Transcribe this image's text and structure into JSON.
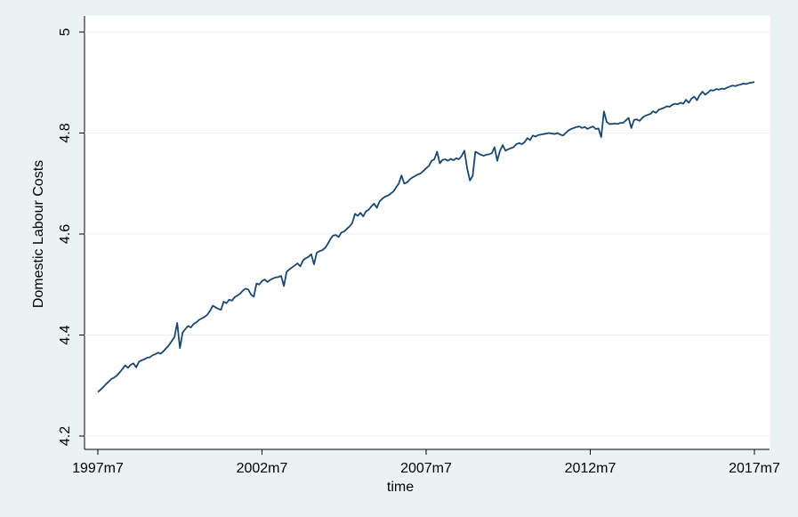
{
  "chart_data": {
    "type": "line",
    "x_label": "time",
    "y_label": "Domestic Labour Costs",
    "x": [
      450,
      451,
      452,
      453,
      454,
      455,
      456,
      457,
      458,
      459,
      460,
      461,
      462,
      463,
      464,
      465,
      466,
      467,
      468,
      469,
      470,
      471,
      472,
      473,
      474,
      475,
      476,
      477,
      478,
      479,
      480,
      481,
      482,
      483,
      484,
      485,
      486,
      487,
      488,
      489,
      490,
      491,
      492,
      493,
      494,
      495,
      496,
      497,
      498,
      499,
      500,
      501,
      502,
      503,
      504,
      505,
      506,
      507,
      508,
      509,
      510,
      511,
      512,
      513,
      514,
      515,
      516,
      517,
      518,
      519,
      520,
      521,
      522,
      523,
      524,
      525,
      526,
      527,
      528,
      529,
      530,
      531,
      532,
      533,
      534,
      535,
      536,
      537,
      538,
      539,
      540,
      541,
      542,
      543,
      544,
      545,
      546,
      547,
      548,
      549,
      550,
      551,
      552,
      553,
      554,
      555,
      556,
      557,
      558,
      559,
      560,
      561,
      562,
      563,
      564,
      565,
      566,
      567,
      568,
      569,
      570,
      571,
      572,
      573,
      574,
      575,
      576,
      577,
      578,
      579,
      580,
      581,
      582,
      583,
      584,
      585,
      586,
      587,
      588,
      589,
      590,
      591,
      592,
      593,
      594,
      595,
      596,
      597,
      598,
      599,
      600,
      601,
      602,
      603,
      604,
      605,
      606,
      607,
      608,
      609,
      610,
      611,
      612,
      613,
      614,
      615,
      616,
      617,
      618,
      619,
      620,
      621,
      622,
      623,
      624,
      625,
      626,
      627,
      628,
      629,
      630,
      631,
      632,
      633,
      634,
      635,
      636,
      637,
      638,
      639,
      640,
      641,
      642,
      643,
      644,
      645,
      646,
      647,
      648,
      649,
      650,
      651,
      652,
      653,
      654,
      655,
      656,
      657,
      658,
      659,
      660,
      661,
      662,
      663,
      664,
      665,
      666,
      667,
      668,
      669,
      670,
      671,
      672,
      673,
      674,
      675,
      676,
      677,
      678,
      679,
      680,
      681,
      682,
      683,
      684,
      685,
      686,
      687,
      688,
      689,
      690
    ],
    "series": [
      {
        "color": "#1a476f",
        "values": [
          4.287,
          4.292,
          4.297,
          4.303,
          4.308,
          4.313,
          4.316,
          4.32,
          4.326,
          4.333,
          4.34,
          4.335,
          4.341,
          4.344,
          4.336,
          4.347,
          4.35,
          4.352,
          4.355,
          4.356,
          4.36,
          4.362,
          4.365,
          4.363,
          4.368,
          4.374,
          4.38,
          4.388,
          4.396,
          4.424,
          4.374,
          4.405,
          4.412,
          4.418,
          4.415,
          4.422,
          4.425,
          4.43,
          4.433,
          4.436,
          4.44,
          4.448,
          4.458,
          4.455,
          4.452,
          4.45,
          4.466,
          4.463,
          4.47,
          4.468,
          4.475,
          4.478,
          4.482,
          4.488,
          4.492,
          4.49,
          4.48,
          4.476,
          4.502,
          4.5,
          4.507,
          4.51,
          4.505,
          4.509,
          4.512,
          4.514,
          4.515,
          4.517,
          4.497,
          4.525,
          4.53,
          4.534,
          4.538,
          4.542,
          4.536,
          4.548,
          4.552,
          4.555,
          4.56,
          4.54,
          4.563,
          4.566,
          4.568,
          4.572,
          4.58,
          4.59,
          4.597,
          4.598,
          4.594,
          4.603,
          4.605,
          4.61,
          4.615,
          4.622,
          4.64,
          4.636,
          4.642,
          4.635,
          4.645,
          4.648,
          4.655,
          4.66,
          4.652,
          4.665,
          4.67,
          4.674,
          4.676,
          4.68,
          4.684,
          4.692,
          4.7,
          4.716,
          4.7,
          4.702,
          4.708,
          4.712,
          4.715,
          4.718,
          4.72,
          4.725,
          4.73,
          4.735,
          4.745,
          4.748,
          4.763,
          4.74,
          4.747,
          4.748,
          4.745,
          4.749,
          4.746,
          4.75,
          4.748,
          4.755,
          4.765,
          4.73,
          4.706,
          4.715,
          4.763,
          4.76,
          4.757,
          4.755,
          4.757,
          4.758,
          4.76,
          4.772,
          4.745,
          4.765,
          4.776,
          4.765,
          4.768,
          4.77,
          4.772,
          4.778,
          4.78,
          4.778,
          4.782,
          4.79,
          4.786,
          4.795,
          4.793,
          4.796,
          4.797,
          4.798,
          4.799,
          4.8,
          4.799,
          4.798,
          4.8,
          4.797,
          4.795,
          4.8,
          4.805,
          4.808,
          4.81,
          4.812,
          4.813,
          4.81,
          4.812,
          4.808,
          4.811,
          4.813,
          4.808,
          4.809,
          4.792,
          4.843,
          4.822,
          4.818,
          4.818,
          4.819,
          4.818,
          4.82,
          4.82,
          4.825,
          4.83,
          4.81,
          4.826,
          4.827,
          4.824,
          4.83,
          4.834,
          4.836,
          4.838,
          4.843,
          4.84,
          4.846,
          4.848,
          4.85,
          4.853,
          4.852,
          4.856,
          4.858,
          4.857,
          4.86,
          4.858,
          4.866,
          4.86,
          4.868,
          4.872,
          4.865,
          4.875,
          4.882,
          4.876,
          4.88,
          4.885,
          4.884,
          4.887,
          4.886,
          4.888,
          4.887,
          4.89,
          4.892,
          4.894,
          4.893,
          4.895,
          4.896,
          4.898,
          4.897,
          4.899,
          4.9,
          4.901
        ]
      }
    ],
    "xlim": [
      450,
      690
    ],
    "xticks": [
      {
        "value": 450,
        "label": "1997m7"
      },
      {
        "value": 510,
        "label": "2002m7"
      },
      {
        "value": 570,
        "label": "2007m7"
      },
      {
        "value": 630,
        "label": "2012m7"
      },
      {
        "value": 690,
        "label": "2017m7"
      }
    ],
    "ylim": [
      4.2,
      5
    ],
    "yticks": [
      {
        "value": 4.2,
        "label": "4.2"
      },
      {
        "value": 4.4,
        "label": "4.4"
      },
      {
        "value": 4.6,
        "label": "4.6"
      },
      {
        "value": 4.8,
        "label": "4.8"
      },
      {
        "value": 5,
        "label": "5"
      }
    ],
    "grid": true
  }
}
